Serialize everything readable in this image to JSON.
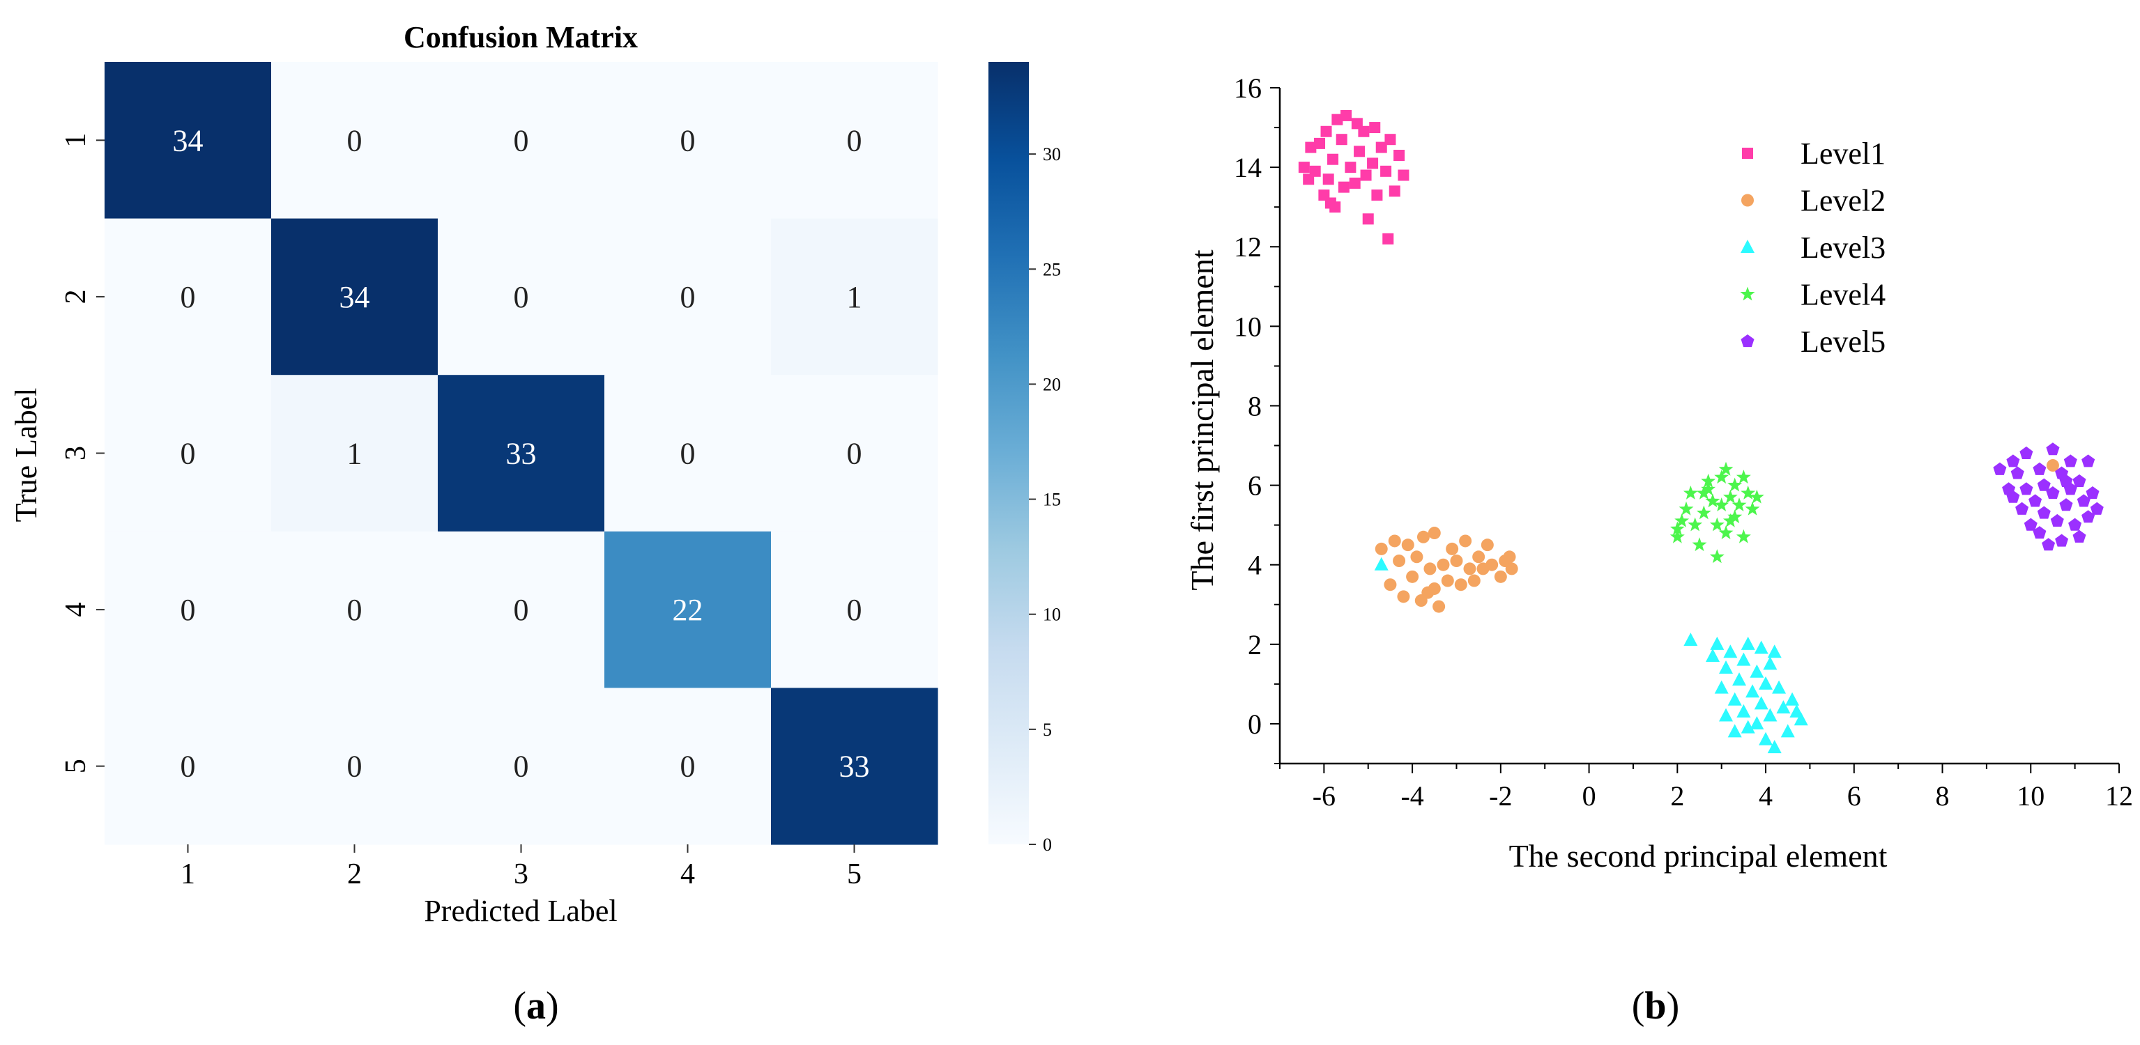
{
  "chart_data": [
    {
      "type": "heatmap",
      "title": "Confusion Matrix",
      "xlabel": "Predicted Label",
      "ylabel": "True Label",
      "x_categories": [
        "1",
        "2",
        "3",
        "4",
        "5"
      ],
      "y_categories": [
        "1",
        "2",
        "3",
        "4",
        "5"
      ],
      "values": [
        [
          34,
          0,
          0,
          0,
          0
        ],
        [
          0,
          34,
          0,
          0,
          1
        ],
        [
          0,
          1,
          33,
          0,
          0
        ],
        [
          0,
          0,
          0,
          22,
          0
        ],
        [
          0,
          0,
          0,
          0,
          33
        ]
      ],
      "colorbar": {
        "range": [
          0,
          34
        ],
        "ticks": [
          0,
          5,
          10,
          15,
          20,
          25,
          30
        ],
        "colormap": "Blues"
      },
      "panel_label": "a"
    },
    {
      "type": "scatter",
      "xlabel": "The second principal element",
      "ylabel": "The first principal element",
      "xlim": [
        -7,
        12
      ],
      "ylim": [
        -1,
        16
      ],
      "xticks": [
        -6,
        -4,
        -2,
        0,
        2,
        4,
        6,
        8,
        10,
        12
      ],
      "yticks": [
        0,
        2,
        4,
        6,
        8,
        10,
        12,
        14,
        16
      ],
      "legend_position": "top-center",
      "panel_label": "b",
      "series": [
        {
          "name": "Level1",
          "marker": "square",
          "color": "#ff3ca9",
          "points": [
            [
              -6.45,
              14.0
            ],
            [
              -6.3,
              14.5
            ],
            [
              -6.2,
              13.9
            ],
            [
              -6.1,
              14.6
            ],
            [
              -6.0,
              13.3
            ],
            [
              -5.95,
              14.9
            ],
            [
              -5.9,
              13.7
            ],
            [
              -5.8,
              14.2
            ],
            [
              -5.75,
              13.0
            ],
            [
              -5.7,
              15.2
            ],
            [
              -5.6,
              14.7
            ],
            [
              -5.55,
              13.5
            ],
            [
              -5.5,
              15.3
            ],
            [
              -5.4,
              14.0
            ],
            [
              -5.3,
              13.6
            ],
            [
              -5.25,
              15.1
            ],
            [
              -5.2,
              14.4
            ],
            [
              -5.1,
              14.9
            ],
            [
              -5.05,
              13.8
            ],
            [
              -5.0,
              12.7
            ],
            [
              -4.9,
              14.1
            ],
            [
              -4.85,
              15.0
            ],
            [
              -4.8,
              13.3
            ],
            [
              -4.7,
              14.5
            ],
            [
              -4.6,
              13.9
            ],
            [
              -4.55,
              12.2
            ],
            [
              -4.5,
              14.7
            ],
            [
              -4.4,
              13.4
            ],
            [
              -4.3,
              14.3
            ],
            [
              -4.2,
              13.8
            ],
            [
              -5.85,
              13.1
            ],
            [
              -6.35,
              13.7
            ]
          ]
        },
        {
          "name": "Level2",
          "marker": "circle",
          "color": "#f4a460",
          "points": [
            [
              -4.7,
              4.4
            ],
            [
              -4.5,
              3.5
            ],
            [
              -4.4,
              4.6
            ],
            [
              -4.3,
              4.1
            ],
            [
              -4.2,
              3.2
            ],
            [
              -4.1,
              4.5
            ],
            [
              -4.0,
              3.7
            ],
            [
              -3.9,
              4.2
            ],
            [
              -3.8,
              3.1
            ],
            [
              -3.75,
              4.7
            ],
            [
              -3.6,
              3.9
            ],
            [
              -3.5,
              3.4
            ],
            [
              -3.5,
              4.8
            ],
            [
              -3.4,
              2.95
            ],
            [
              -3.3,
              4.0
            ],
            [
              -3.2,
              3.6
            ],
            [
              -3.1,
              4.4
            ],
            [
              -3.0,
              4.1
            ],
            [
              -2.9,
              3.5
            ],
            [
              -2.8,
              4.6
            ],
            [
              -2.7,
              3.9
            ],
            [
              -2.6,
              3.6
            ],
            [
              -2.5,
              4.2
            ],
            [
              -2.4,
              3.9
            ],
            [
              -2.3,
              4.5
            ],
            [
              -2.2,
              4.0
            ],
            [
              -2.0,
              3.7
            ],
            [
              -1.9,
              4.1
            ],
            [
              -1.75,
              3.9
            ],
            [
              -1.8,
              4.2
            ],
            [
              -3.65,
              3.3
            ],
            [
              10.5,
              6.5
            ]
          ]
        },
        {
          "name": "Level3",
          "marker": "triangle",
          "color": "#2cfaff",
          "points": [
            [
              -4.7,
              4.0
            ],
            [
              2.3,
              2.1
            ],
            [
              2.8,
              1.7
            ],
            [
              2.9,
              2.0
            ],
            [
              3.0,
              0.9
            ],
            [
              3.1,
              1.4
            ],
            [
              3.1,
              0.2
            ],
            [
              3.2,
              1.8
            ],
            [
              3.3,
              0.6
            ],
            [
              3.3,
              -0.2
            ],
            [
              3.4,
              1.1
            ],
            [
              3.5,
              0.3
            ],
            [
              3.5,
              1.6
            ],
            [
              3.6,
              2.0
            ],
            [
              3.6,
              -0.1
            ],
            [
              3.7,
              0.8
            ],
            [
              3.8,
              1.3
            ],
            [
              3.8,
              0.0
            ],
            [
              3.9,
              1.9
            ],
            [
              3.9,
              0.5
            ],
            [
              4.0,
              -0.4
            ],
            [
              4.0,
              1.0
            ],
            [
              4.1,
              1.5
            ],
            [
              4.1,
              0.2
            ],
            [
              4.2,
              1.8
            ],
            [
              4.2,
              -0.6
            ],
            [
              4.3,
              0.9
            ],
            [
              4.4,
              0.4
            ],
            [
              4.5,
              -0.2
            ],
            [
              4.6,
              0.6
            ],
            [
              4.7,
              0.3
            ],
            [
              4.8,
              0.1
            ]
          ]
        },
        {
          "name": "Level4",
          "marker": "star",
          "color": "#4cf54c",
          "points": [
            [
              2.0,
              4.9
            ],
            [
              2.0,
              4.7
            ],
            [
              2.1,
              5.1
            ],
            [
              2.2,
              5.4
            ],
            [
              2.3,
              5.8
            ],
            [
              2.4,
              5.0
            ],
            [
              2.5,
              4.5
            ],
            [
              2.6,
              5.3
            ],
            [
              2.7,
              5.9
            ],
            [
              2.7,
              6.1
            ],
            [
              2.8,
              5.6
            ],
            [
              2.9,
              5.0
            ],
            [
              2.9,
              4.2
            ],
            [
              3.0,
              6.2
            ],
            [
              3.0,
              5.5
            ],
            [
              3.1,
              4.8
            ],
            [
              3.1,
              6.4
            ],
            [
              3.2,
              5.7
            ],
            [
              3.3,
              5.2
            ],
            [
              3.3,
              6.0
            ],
            [
              3.4,
              5.5
            ],
            [
              3.5,
              4.7
            ],
            [
              3.5,
              6.2
            ],
            [
              3.6,
              5.8
            ],
            [
              3.7,
              5.4
            ],
            [
              3.8,
              5.7
            ],
            [
              2.6,
              5.8
            ],
            [
              3.2,
              5.1
            ]
          ]
        },
        {
          "name": "Level5",
          "marker": "pentagon",
          "color": "#9b30ff",
          "points": [
            [
              9.3,
              6.4
            ],
            [
              9.5,
              5.9
            ],
            [
              9.6,
              6.6
            ],
            [
              9.7,
              6.3
            ],
            [
              9.8,
              5.4
            ],
            [
              9.9,
              5.9
            ],
            [
              9.9,
              6.8
            ],
            [
              10.0,
              5.0
            ],
            [
              10.1,
              5.6
            ],
            [
              10.2,
              6.4
            ],
            [
              10.2,
              4.8
            ],
            [
              10.3,
              6.0
            ],
            [
              10.3,
              5.3
            ],
            [
              10.4,
              4.5
            ],
            [
              10.5,
              5.8
            ],
            [
              10.5,
              6.9
            ],
            [
              10.6,
              5.1
            ],
            [
              10.7,
              6.3
            ],
            [
              10.7,
              4.6
            ],
            [
              10.8,
              5.5
            ],
            [
              10.9,
              6.6
            ],
            [
              10.9,
              5.9
            ],
            [
              11.0,
              5.0
            ],
            [
              11.1,
              6.1
            ],
            [
              11.1,
              4.7
            ],
            [
              11.2,
              5.6
            ],
            [
              11.3,
              6.6
            ],
            [
              11.3,
              5.2
            ],
            [
              11.4,
              5.8
            ],
            [
              11.5,
              5.4
            ],
            [
              10.8,
              6.1
            ],
            [
              9.6,
              5.7
            ]
          ]
        }
      ]
    }
  ]
}
